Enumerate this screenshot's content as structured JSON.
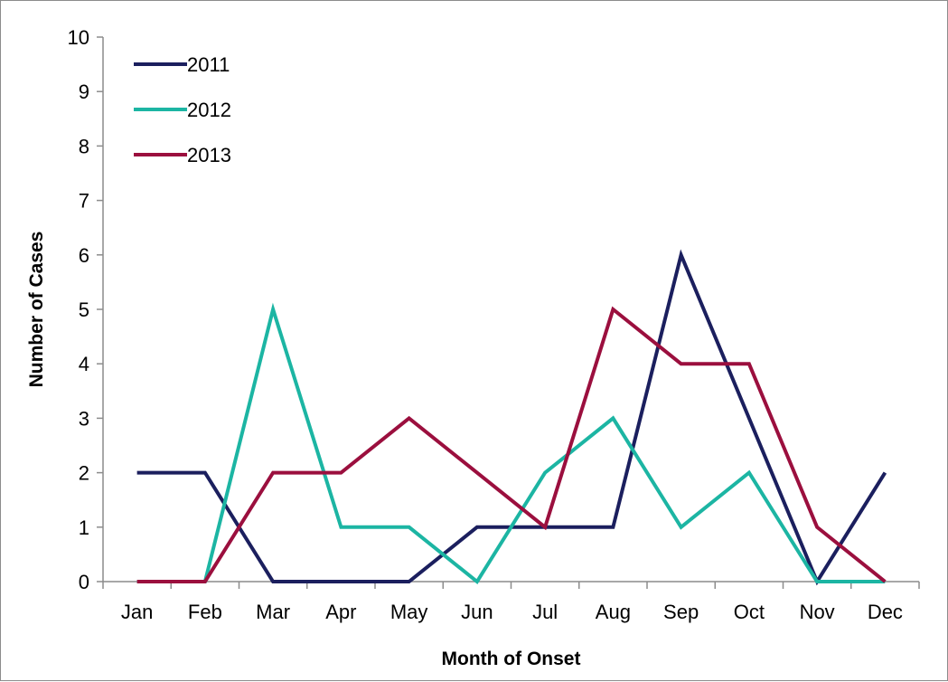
{
  "chart_data": {
    "type": "line",
    "title": "",
    "xlabel": "Month of Onset",
    "ylabel": "Number of Cases",
    "categories": [
      "Jan",
      "Feb",
      "Mar",
      "Apr",
      "May",
      "Jun",
      "Jul",
      "Aug",
      "Sep",
      "Oct",
      "Nov",
      "Dec"
    ],
    "ylim": [
      0,
      10
    ],
    "yticks": [
      "0",
      "1",
      "2",
      "3",
      "4",
      "5",
      "6",
      "7",
      "8",
      "9",
      "10"
    ],
    "grid": false,
    "legend_position": "top-left",
    "series": [
      {
        "name": "2011",
        "color": "#1b1f5e",
        "values": [
          2,
          2,
          0,
          0,
          0,
          1,
          1,
          1,
          6,
          3,
          0,
          2
        ]
      },
      {
        "name": "2012",
        "color": "#1cb5a3",
        "values": [
          0,
          0,
          5,
          1,
          1,
          0,
          2,
          3,
          1,
          2,
          0,
          0
        ]
      },
      {
        "name": "2013",
        "color": "#9b0f3e",
        "values": [
          0,
          0,
          2,
          2,
          3,
          2,
          1,
          5,
          4,
          4,
          1,
          0
        ]
      }
    ]
  }
}
